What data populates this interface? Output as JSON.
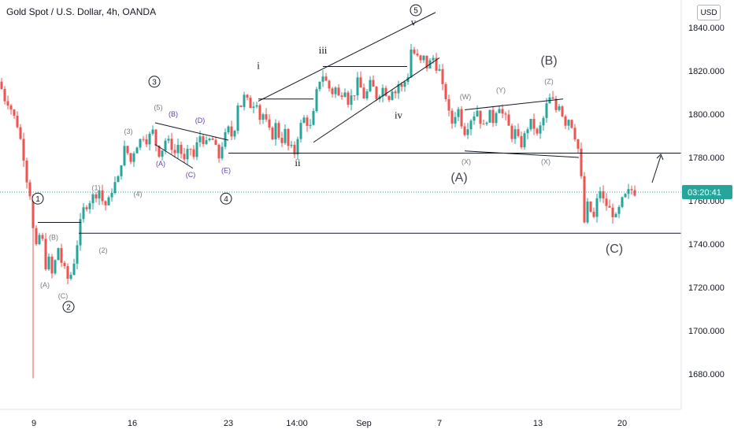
{
  "header": {
    "title": "Gold Spot / U.S. Dollar, 4h, OANDA",
    "currency": "USD"
  },
  "price_axis": {
    "ticks": [
      "1840.000",
      "1820.000",
      "1800.000",
      "1780.000",
      "1760.000",
      "1740.000",
      "1720.000",
      "1700.000",
      "1680.000"
    ]
  },
  "time_axis": {
    "ticks": [
      "9",
      "16",
      "23",
      "14:00",
      "Sep",
      "7",
      "13",
      "20"
    ]
  },
  "current_price": {
    "value": 1764,
    "label": "03:20:41",
    "color": "#26a69a"
  },
  "colors": {
    "up": "#26a69a",
    "down": "#ef5350",
    "line": "#131722",
    "gray_label": "#787b86",
    "purple_label": "#673ab7"
  },
  "chart_data": {
    "type": "candlestick",
    "title": "Gold Spot / U.S. Dollar, 4h, OANDA",
    "y_unit": "USD",
    "ylim": [
      1675,
      1852
    ],
    "grid": false,
    "horizontal_levels": [
      1782,
      1745
    ],
    "close_path": [
      [
        0,
        1815
      ],
      [
        3,
        1810
      ],
      [
        6,
        1807
      ],
      [
        9,
        1806
      ],
      [
        12,
        1805
      ],
      [
        16,
        1800
      ],
      [
        19,
        1798
      ],
      [
        22,
        1795
      ],
      [
        25,
        1790
      ],
      [
        28,
        1785
      ],
      [
        31,
        1778
      ],
      [
        34,
        1770
      ],
      [
        37,
        1765
      ],
      [
        40,
        1760
      ],
      [
        43,
        1740
      ],
      [
        46,
        1738
      ],
      [
        49,
        1742
      ],
      [
        52,
        1748
      ],
      [
        55,
        1738
      ],
      [
        58,
        1730
      ],
      [
        61,
        1735
      ],
      [
        64,
        1728
      ],
      [
        67,
        1725
      ],
      [
        70,
        1732
      ],
      [
        73,
        1740
      ],
      [
        76,
        1735
      ],
      [
        79,
        1730
      ],
      [
        82,
        1728
      ],
      [
        85,
        1725
      ],
      [
        88,
        1722
      ],
      [
        91,
        1728
      ],
      [
        94,
        1732
      ],
      [
        97,
        1738
      ],
      [
        100,
        1745
      ],
      [
        103,
        1752
      ],
      [
        106,
        1756
      ],
      [
        110,
        1758
      ],
      [
        114,
        1760
      ],
      [
        118,
        1762
      ],
      [
        122,
        1763
      ],
      [
        126,
        1765
      ],
      [
        130,
        1760
      ],
      [
        134,
        1758
      ],
      [
        138,
        1760
      ],
      [
        142,
        1765
      ],
      [
        146,
        1768
      ],
      [
        150,
        1770
      ],
      [
        154,
        1778
      ],
      [
        158,
        1784
      ],
      [
        162,
        1782
      ],
      [
        166,
        1778
      ],
      [
        170,
        1783
      ],
      [
        174,
        1786
      ],
      [
        178,
        1788
      ],
      [
        182,
        1790
      ],
      [
        186,
        1788
      ],
      [
        190,
        1790
      ],
      [
        194,
        1792
      ],
      [
        198,
        1786
      ],
      [
        202,
        1782
      ],
      [
        206,
        1784
      ],
      [
        210,
        1788
      ],
      [
        214,
        1787
      ],
      [
        218,
        1785
      ],
      [
        222,
        1782
      ],
      [
        226,
        1786
      ],
      [
        230,
        1782
      ],
      [
        234,
        1778
      ],
      [
        238,
        1782
      ],
      [
        242,
        1784
      ],
      [
        246,
        1780
      ],
      [
        250,
        1786
      ],
      [
        254,
        1790
      ],
      [
        258,
        1788
      ],
      [
        262,
        1786
      ],
      [
        266,
        1788
      ],
      [
        270,
        1788
      ],
      [
        274,
        1784
      ],
      [
        278,
        1780
      ],
      [
        282,
        1786
      ],
      [
        286,
        1790
      ],
      [
        290,
        1793
      ],
      [
        294,
        1790
      ],
      [
        298,
        1794
      ],
      [
        302,
        1805
      ],
      [
        306,
        1804
      ],
      [
        310,
        1808
      ],
      [
        314,
        1806
      ],
      [
        318,
        1804
      ],
      [
        322,
        1805
      ],
      [
        326,
        1806
      ],
      [
        330,
        1798
      ],
      [
        334,
        1800
      ],
      [
        338,
        1796
      ],
      [
        342,
        1792
      ],
      [
        346,
        1790
      ],
      [
        350,
        1795
      ],
      [
        354,
        1790
      ],
      [
        358,
        1788
      ],
      [
        362,
        1792
      ],
      [
        366,
        1785
      ],
      [
        370,
        1784
      ],
      [
        374,
        1782
      ],
      [
        378,
        1790
      ],
      [
        382,
        1795
      ],
      [
        386,
        1798
      ],
      [
        390,
        1796
      ],
      [
        394,
        1794
      ],
      [
        398,
        1800
      ],
      [
        402,
        1810
      ],
      [
        406,
        1816
      ],
      [
        410,
        1818
      ],
      [
        414,
        1815
      ],
      [
        418,
        1812
      ],
      [
        422,
        1810
      ],
      [
        426,
        1812
      ],
      [
        430,
        1808
      ],
      [
        434,
        1810
      ],
      [
        438,
        1812
      ],
      [
        442,
        1806
      ],
      [
        446,
        1808
      ],
      [
        450,
        1810
      ],
      [
        454,
        1815
      ],
      [
        458,
        1812
      ],
      [
        462,
        1808
      ],
      [
        466,
        1810
      ],
      [
        470,
        1814
      ],
      [
        474,
        1812
      ],
      [
        478,
        1808
      ],
      [
        482,
        1810
      ],
      [
        486,
        1812
      ],
      [
        490,
        1810
      ],
      [
        494,
        1808
      ],
      [
        498,
        1812
      ],
      [
        502,
        1810
      ],
      [
        506,
        1814
      ],
      [
        510,
        1812
      ],
      [
        514,
        1815
      ],
      [
        518,
        1818
      ],
      [
        522,
        1830
      ],
      [
        526,
        1828
      ],
      [
        530,
        1826
      ],
      [
        534,
        1824
      ],
      [
        538,
        1826
      ],
      [
        542,
        1822
      ],
      [
        546,
        1824
      ],
      [
        550,
        1826
      ],
      [
        554,
        1822
      ],
      [
        558,
        1820
      ],
      [
        562,
        1812
      ],
      [
        566,
        1808
      ],
      [
        570,
        1800
      ],
      [
        574,
        1796
      ],
      [
        578,
        1800
      ],
      [
        582,
        1802
      ],
      [
        586,
        1796
      ],
      [
        590,
        1792
      ],
      [
        594,
        1795
      ],
      [
        598,
        1798
      ],
      [
        602,
        1800
      ],
      [
        606,
        1802
      ],
      [
        610,
        1797
      ],
      [
        614,
        1794
      ],
      [
        618,
        1798
      ],
      [
        622,
        1800
      ],
      [
        626,
        1797
      ],
      [
        630,
        1802
      ],
      [
        634,
        1804
      ],
      [
        638,
        1800
      ],
      [
        642,
        1798
      ],
      [
        646,
        1794
      ],
      [
        650,
        1790
      ],
      [
        654,
        1792
      ],
      [
        658,
        1788
      ],
      [
        662,
        1786
      ],
      [
        666,
        1790
      ],
      [
        670,
        1794
      ],
      [
        674,
        1796
      ],
      [
        678,
        1794
      ],
      [
        682,
        1790
      ],
      [
        686,
        1794
      ],
      [
        690,
        1798
      ],
      [
        694,
        1804
      ],
      [
        698,
        1807
      ],
      [
        702,
        1806
      ],
      [
        706,
        1802
      ],
      [
        710,
        1805
      ],
      [
        714,
        1800
      ],
      [
        718,
        1796
      ],
      [
        722,
        1798
      ],
      [
        726,
        1795
      ],
      [
        730,
        1790
      ],
      [
        734,
        1784
      ],
      [
        738,
        1770
      ],
      [
        742,
        1750
      ],
      [
        746,
        1758
      ],
      [
        750,
        1755
      ],
      [
        754,
        1752
      ],
      [
        758,
        1760
      ],
      [
        762,
        1765
      ],
      [
        766,
        1760
      ],
      [
        770,
        1758
      ],
      [
        774,
        1756
      ],
      [
        778,
        1754
      ],
      [
        782,
        1752
      ],
      [
        786,
        1756
      ],
      [
        790,
        1760
      ],
      [
        794,
        1762
      ],
      [
        798,
        1764
      ],
      [
        802,
        1765
      ],
      [
        806,
        1764
      ]
    ],
    "annotations": {
      "gray": [
        {
          "text": "(B)",
          "x": 68,
          "y": 1742
        },
        {
          "text": "(A)",
          "x": 57,
          "y": 1720
        },
        {
          "text": "(C)",
          "x": 80,
          "y": 1715
        },
        {
          "text": "(1)",
          "x": 122,
          "y": 1765
        },
        {
          "text": "(2)",
          "x": 131,
          "y": 1736
        },
        {
          "text": "(3)",
          "x": 163,
          "y": 1791
        },
        {
          "text": "(4)",
          "x": 175,
          "y": 1762
        },
        {
          "text": "(5)",
          "x": 201,
          "y": 1802
        },
        {
          "text": "(W)",
          "x": 591,
          "y": 1807
        },
        {
          "text": "(Y)",
          "x": 636,
          "y": 1810
        },
        {
          "text": "(Z)",
          "x": 697,
          "y": 1814
        },
        {
          "text": "(X)",
          "x": 592,
          "y": 1777
        },
        {
          "text": "(X)",
          "x": 693,
          "y": 1777
        }
      ],
      "purple": [
        {
          "text": "(B)",
          "x": 220,
          "y": 1799
        },
        {
          "text": "(D)",
          "x": 254,
          "y": 1796
        },
        {
          "text": "(A)",
          "x": 204,
          "y": 1776
        },
        {
          "text": "(C)",
          "x": 242,
          "y": 1771
        },
        {
          "text": "(E)",
          "x": 287,
          "y": 1773
        }
      ],
      "roman": [
        {
          "text": "i",
          "x": 328,
          "y": 1821
        },
        {
          "text": "iii",
          "x": 410,
          "y": 1828
        },
        {
          "text": "v",
          "x": 525,
          "y": 1841
        },
        {
          "text": "ii",
          "x": 378,
          "y": 1776
        },
        {
          "text": "iv",
          "x": 506,
          "y": 1798
        }
      ],
      "circled": [
        {
          "text": "1",
          "x": 48,
          "y": 1761
        },
        {
          "text": "2",
          "x": 87,
          "y": 1711
        },
        {
          "text": "3",
          "x": 196,
          "y": 1815
        },
        {
          "text": "4",
          "x": 287,
          "y": 1761
        },
        {
          "text": "5",
          "x": 528,
          "y": 1848
        }
      ],
      "wave": [
        {
          "text": "(B)",
          "x": 697,
          "y": 1823
        },
        {
          "text": "(A)",
          "x": 583,
          "y": 1769
        },
        {
          "text": "(C)",
          "x": 780,
          "y": 1736
        }
      ]
    }
  }
}
